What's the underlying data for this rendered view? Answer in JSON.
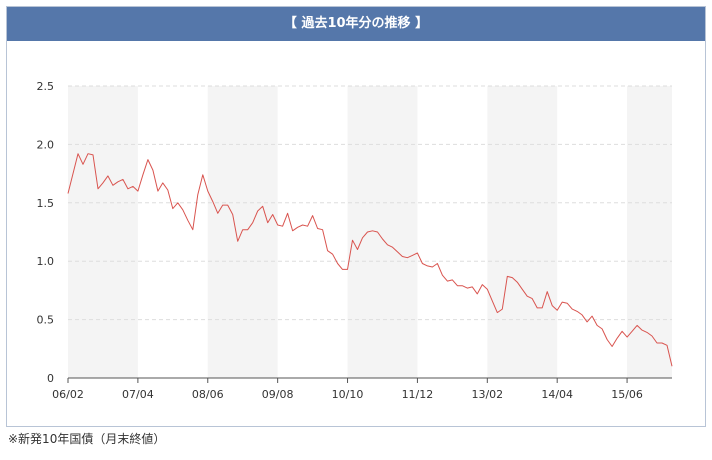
{
  "header": {
    "title": "【 過去10年分の推移 】"
  },
  "footnote": "※新発10年国債（月末終値）",
  "colors": {
    "header_bg": "#5577aa",
    "line": "#d9544f",
    "band": "#f4f4f4",
    "grid": "#dddddd"
  },
  "chart_data": {
    "type": "line",
    "title": "",
    "xlabel": "",
    "ylabel": "",
    "ylim": [
      0,
      2.5
    ],
    "yticks": [
      "0",
      "0.5",
      "1.0",
      "1.5",
      "2.0",
      "2.5"
    ],
    "xticks": [
      {
        "label": "06/02",
        "index": 0
      },
      {
        "label": "07/04",
        "index": 14
      },
      {
        "label": "08/06",
        "index": 28
      },
      {
        "label": "09/08",
        "index": 42
      },
      {
        "label": "10/10",
        "index": 56
      },
      {
        "label": "11/12",
        "index": 70
      },
      {
        "label": "13/02",
        "index": 84
      },
      {
        "label": "14/04",
        "index": 98
      },
      {
        "label": "15/06",
        "index": 112
      }
    ],
    "grid": true,
    "legend": "none",
    "series": [
      {
        "values": [
          1.58,
          1.75,
          1.92,
          1.83,
          1.92,
          1.91,
          1.62,
          1.67,
          1.73,
          1.65,
          1.68,
          1.7,
          1.62,
          1.64,
          1.6,
          1.74,
          1.87,
          1.78,
          1.6,
          1.67,
          1.61,
          1.45,
          1.5,
          1.44,
          1.35,
          1.27,
          1.57,
          1.74,
          1.6,
          1.51,
          1.41,
          1.48,
          1.48,
          1.4,
          1.17,
          1.27,
          1.27,
          1.33,
          1.43,
          1.47,
          1.33,
          1.4,
          1.31,
          1.3,
          1.41,
          1.26,
          1.29,
          1.31,
          1.3,
          1.39,
          1.28,
          1.27,
          1.09,
          1.06,
          0.98,
          0.93,
          0.93,
          1.18,
          1.1,
          1.2,
          1.25,
          1.26,
          1.25,
          1.19,
          1.14,
          1.12,
          1.08,
          1.04,
          1.03,
          1.05,
          1.07,
          0.98,
          0.96,
          0.95,
          0.98,
          0.88,
          0.83,
          0.84,
          0.79,
          0.79,
          0.77,
          0.78,
          0.72,
          0.8,
          0.76,
          0.66,
          0.56,
          0.59,
          0.87,
          0.86,
          0.82,
          0.76,
          0.7,
          0.68,
          0.6,
          0.6,
          0.74,
          0.62,
          0.58,
          0.65,
          0.64,
          0.59,
          0.57,
          0.54,
          0.48,
          0.53,
          0.45,
          0.42,
          0.33,
          0.27,
          0.34,
          0.4,
          0.35,
          0.4,
          0.45,
          0.41,
          0.39,
          0.36,
          0.3,
          0.3,
          0.28,
          0.1
        ]
      }
    ]
  }
}
